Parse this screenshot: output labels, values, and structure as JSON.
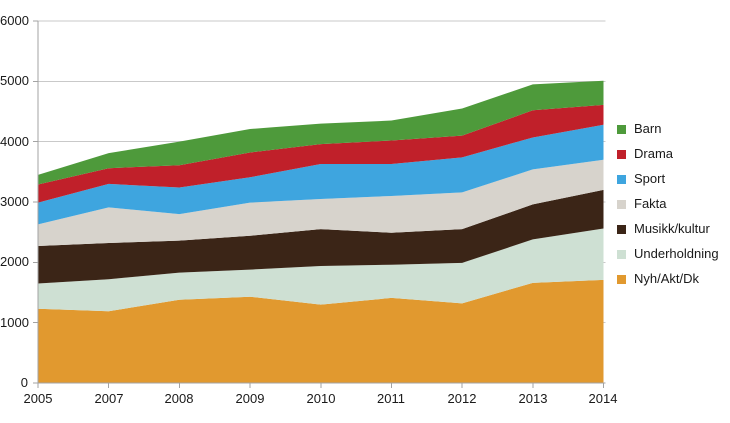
{
  "chart_data": {
    "type": "area",
    "stacked": true,
    "title": "",
    "categories": [
      "2005",
      "2007",
      "2008",
      "2009",
      "2010",
      "2011",
      "2012",
      "2013",
      "2014"
    ],
    "series": [
      {
        "name": "Barn",
        "color": "#4E9A3B",
        "values": [
          160,
          250,
          390,
          390,
          340,
          330,
          450,
          430,
          400
        ]
      },
      {
        "name": "Drama",
        "color": "#C0202A",
        "values": [
          300,
          260,
          370,
          410,
          330,
          390,
          360,
          450,
          330
        ]
      },
      {
        "name": "Sport",
        "color": "#3EA5DF",
        "values": [
          360,
          390,
          440,
          420,
          580,
          530,
          580,
          530,
          580
        ]
      },
      {
        "name": "Fakta",
        "color": "#D7D3CC",
        "values": [
          360,
          590,
          440,
          550,
          500,
          610,
          610,
          580,
          500
        ]
      },
      {
        "name": "Musikk/kultur",
        "color": "#3B2517",
        "values": [
          620,
          600,
          530,
          560,
          610,
          530,
          560,
          580,
          640
        ]
      },
      {
        "name": "Underholdning",
        "color": "#CEE0D3",
        "values": [
          420,
          530,
          450,
          450,
          640,
          550,
          670,
          720,
          850
        ]
      },
      {
        "name": "Nyh/Akt/Dk",
        "color": "#E1992F",
        "values": [
          1230,
          1190,
          1380,
          1430,
          1300,
          1410,
          1320,
          1660,
          1710
        ]
      }
    ],
    "y_axis": {
      "min": 0,
      "max": 6000,
      "step": 1000,
      "tick_labels": [
        "0",
        "1000",
        "2000",
        "3000",
        "4000",
        "5000",
        "6000"
      ]
    },
    "x_tick_labels": [
      "2005",
      "2007",
      "2008",
      "2009",
      "2010",
      "2011",
      "2012",
      "2013",
      "2014"
    ],
    "legend_position": "right",
    "grid": "horizontal",
    "gridline_color": "#C9C9C9",
    "axis_color": "#A3A3A3",
    "text_color": "#1A1A1A",
    "background": "#FFFFFF"
  }
}
